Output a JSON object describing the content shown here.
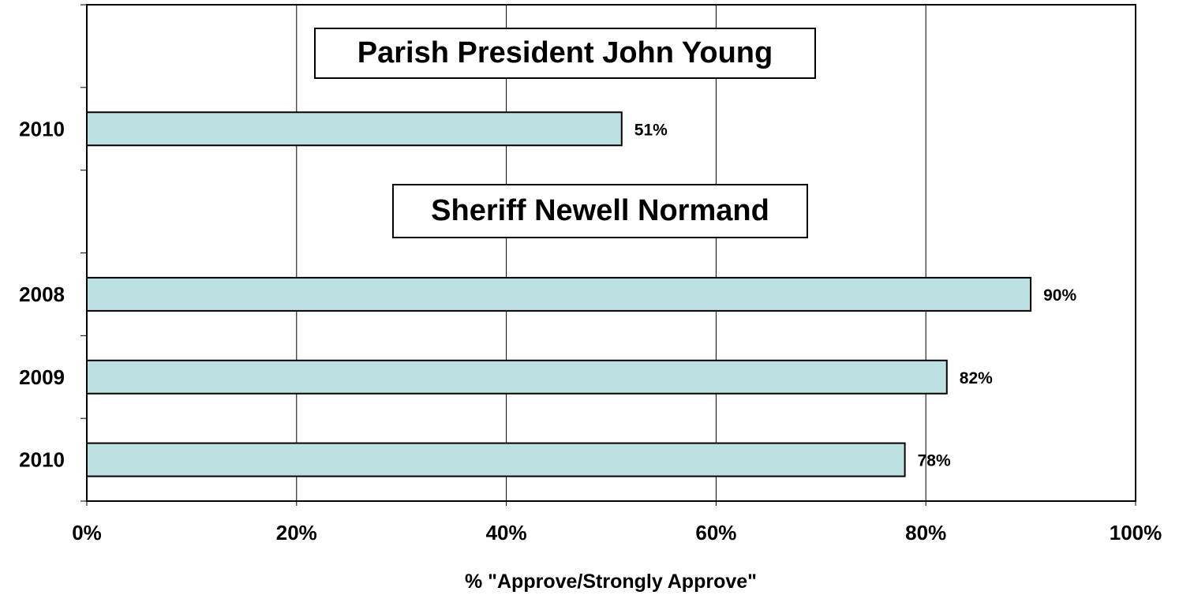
{
  "chart_data": {
    "type": "bar",
    "orientation": "horizontal",
    "xlabel": "% \"Approve/Strongly Approve\"",
    "ylabel": "",
    "xlim": [
      0,
      100
    ],
    "x_ticks": [
      "0%",
      "20%",
      "40%",
      "60%",
      "80%",
      "100%"
    ],
    "grid": "vertical",
    "bar_color": "#bde1e3",
    "groups": [
      {
        "title": "Parish President John Young",
        "bars": [
          {
            "category": "2010",
            "value": 51,
            "label": "51%"
          }
        ]
      },
      {
        "title": "Sheriff Newell Normand",
        "bars": [
          {
            "category": "2008",
            "value": 90,
            "label": "90%"
          },
          {
            "category": "2009",
            "value": 82,
            "label": "82%"
          },
          {
            "category": "2010",
            "value": 78,
            "label": "78%"
          }
        ]
      }
    ]
  }
}
